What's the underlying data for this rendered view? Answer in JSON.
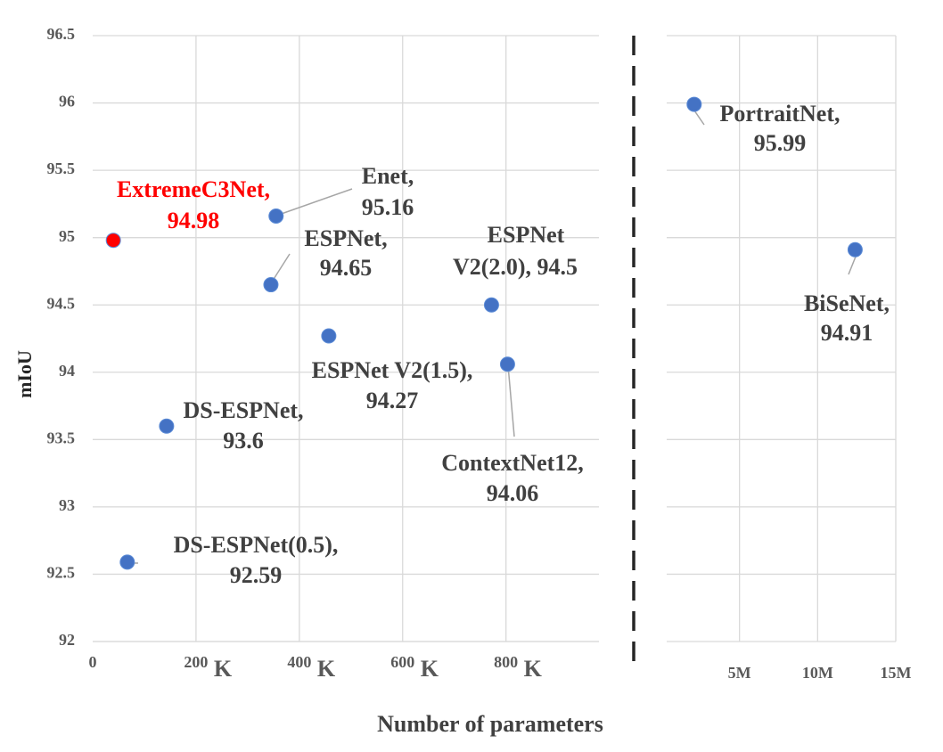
{
  "chart_data": [
    {
      "type": "scatter",
      "ylabel": "mIoU",
      "xlabel": "Number of parameters",
      "xlim": [
        0,
        980
      ],
      "xticks": [
        0,
        200,
        400,
        600,
        800
      ],
      "xtick_suffix": "K",
      "ylim": [
        92,
        96.5
      ],
      "yticks": [
        92,
        92.5,
        93,
        93.5,
        94,
        94.5,
        95,
        95.5,
        96,
        96.5
      ],
      "grid": true,
      "ytick_labels": true,
      "points": [
        {
          "label": [
            "ExtremeC3Net,",
            "94.98"
          ],
          "x": 40,
          "y": 94.98,
          "color": "#ff0000",
          "label_color": "#ff0000"
        },
        {
          "label": [
            "Enet,",
            "95.16"
          ],
          "x": 355,
          "y": 95.16,
          "color": "#4472c4",
          "label_color": "#404040"
        },
        {
          "label": [
            "ESPNet,",
            "94.65"
          ],
          "x": 345,
          "y": 94.65,
          "color": "#4472c4",
          "label_color": "#404040"
        },
        {
          "label": [
            "ESPNet V2(1.5),",
            "94.27"
          ],
          "x": 457,
          "y": 94.27,
          "color": "#4472c4",
          "label_color": "#404040"
        },
        {
          "label": [
            "ESPNet",
            "V2(2.0), 94.5"
          ],
          "x": 772,
          "y": 94.5,
          "color": "#4472c4",
          "label_color": "#404040"
        },
        {
          "label": [
            "ContextNet12,",
            "94.06"
          ],
          "x": 803,
          "y": 94.06,
          "color": "#4472c4",
          "label_color": "#404040"
        },
        {
          "label": [
            "DS-ESPNet,",
            "93.6"
          ],
          "x": 143,
          "y": 93.6,
          "color": "#4472c4",
          "label_color": "#404040"
        },
        {
          "label": [
            "DS-ESPNet(0.5),",
            "92.59"
          ],
          "x": 67,
          "y": 92.59,
          "color": "#4472c4",
          "label_color": "#404040"
        }
      ]
    },
    {
      "type": "scatter",
      "xlim": [
        0,
        15
      ],
      "xticks": [
        {
          "value": 5,
          "label": "5M"
        },
        {
          "value": 10,
          "label": "10M"
        },
        {
          "value": 15,
          "label": "15M"
        }
      ],
      "ylim": [
        92,
        96.5
      ],
      "yticks": [
        92.5,
        93,
        93.5,
        94,
        94.5,
        95,
        95.5,
        96,
        96.5
      ],
      "grid": true,
      "ytick_labels": false,
      "points": [
        {
          "label": [
            "PortraitNet,",
            "95.99"
          ],
          "x": 2.1,
          "y": 95.99,
          "color": "#4472c4",
          "label_color": "#404040"
        },
        {
          "label": [
            "BiSeNet,",
            "94.91"
          ],
          "x": 12.4,
          "y": 94.91,
          "color": "#4472c4",
          "label_color": "#404040"
        }
      ]
    }
  ]
}
